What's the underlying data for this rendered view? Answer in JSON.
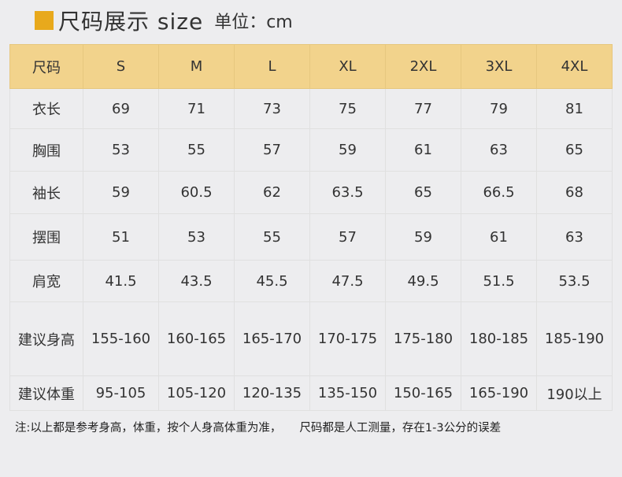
{
  "title": {
    "main": "尺码展示 size",
    "unit": "单位：cm",
    "accent": "#e8a91c"
  },
  "table": {
    "header": [
      "尺码",
      "S",
      "M",
      "L",
      "XL",
      "2XL",
      "3XL",
      "4XL"
    ],
    "rows": [
      [
        "衣长",
        "69",
        "71",
        "73",
        "75",
        "77",
        "79",
        "81"
      ],
      [
        "胸围",
        "53",
        "55",
        "57",
        "59",
        "61",
        "63",
        "65"
      ],
      [
        "袖长",
        "59",
        "60.5",
        "62",
        "63.5",
        "65",
        "66.5",
        "68"
      ],
      [
        "摆围",
        "51",
        "53",
        "55",
        "57",
        "59",
        "61",
        "63"
      ],
      [
        "肩宽",
        "41.5",
        "43.5",
        "45.5",
        "47.5",
        "49.5",
        "51.5",
        "53.5"
      ],
      [
        "建议身高",
        "155-160",
        "160-165",
        "165-170",
        "170-175",
        "175-180",
        "180-185",
        "185-190"
      ],
      [
        "建议体重",
        "95-105",
        "105-120",
        "120-135",
        "135-150",
        "150-165",
        "165-190",
        "190以上"
      ]
    ]
  },
  "note": "注:以上都是参考身高，体重，按个人身高体重为准，     尺码都是人工测量，存在1-3公分的误差"
}
